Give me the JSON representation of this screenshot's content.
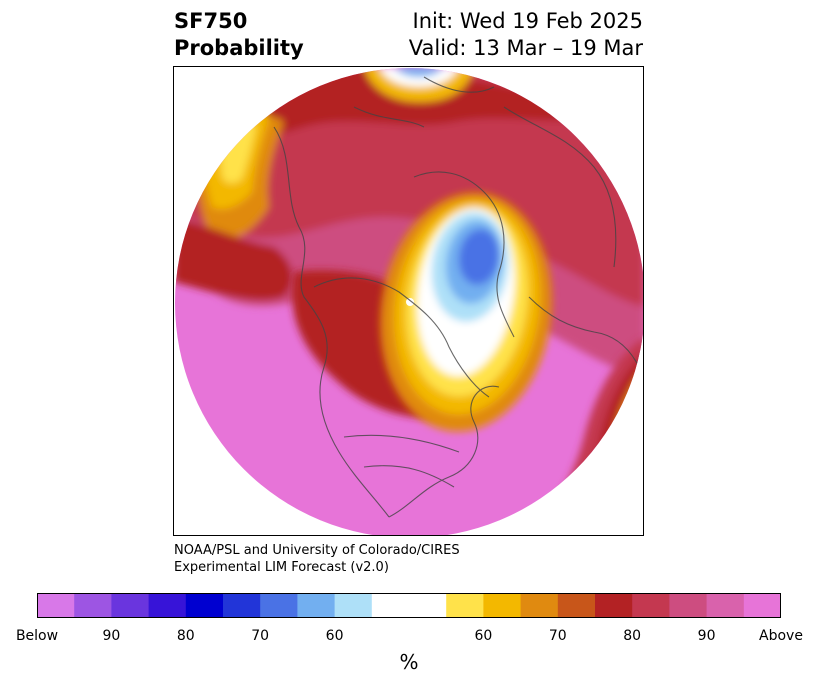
{
  "header": {
    "title_line1": "SF750",
    "title_line2": "Probability",
    "init_line": "Init: Wed 19 Feb 2025",
    "valid_line": "Valid: 13 Mar – 19 Mar"
  },
  "credit": {
    "line1": "NOAA/PSL and University of Colorado/CIRES",
    "line2": "Experimental LIM Forecast (v2.0)"
  },
  "colorbar": {
    "unit": "%",
    "colors": [
      "#d878e8",
      "#9d55e3",
      "#6a35de",
      "#3714d8",
      "#0000d0",
      "#2235d8",
      "#4a72e5",
      "#72aff0",
      "#aee0f8",
      "#ffffff",
      "#ffe24a",
      "#f3b800",
      "#e08a10",
      "#c8561a",
      "#b32224",
      "#c43850",
      "#cd4d80",
      "#d962ac",
      "#e774d8"
    ],
    "tick_labels": [
      "Below",
      "90",
      "80",
      "70",
      "60",
      "60",
      "70",
      "80",
      "90",
      "Above"
    ]
  }
}
